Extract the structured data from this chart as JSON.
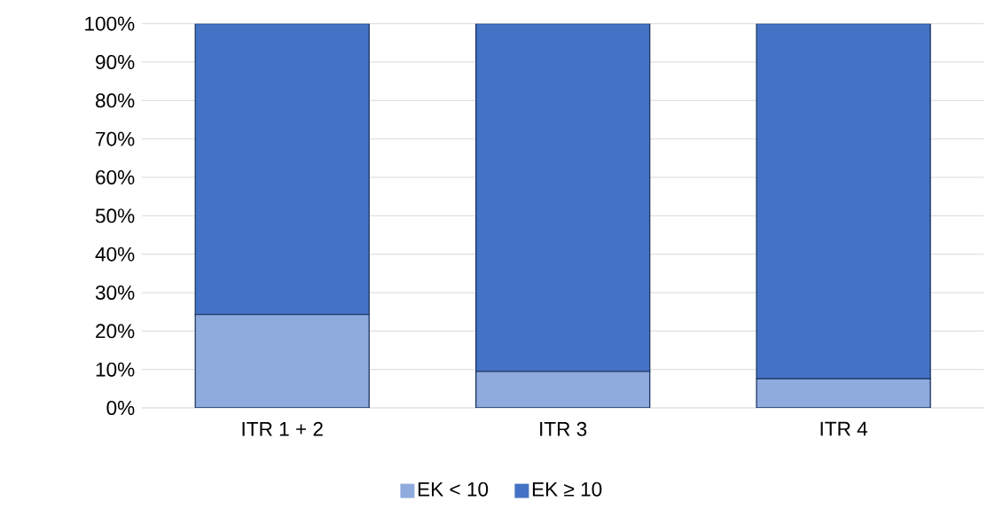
{
  "chart_data": {
    "type": "bar",
    "stacked": true,
    "categories": [
      "ITR 1 + 2",
      "ITR 3",
      "ITR 4"
    ],
    "series": [
      {
        "name": "EK < 10",
        "color": "#8faadc",
        "values": [
          24.3,
          9.5,
          7.6
        ]
      },
      {
        "name": "EK ≥ 10",
        "color": "#4472c4",
        "values": [
          75.7,
          90.5,
          92.4
        ]
      }
    ],
    "ylim": [
      0,
      100
    ],
    "yticks": [
      {
        "value": 0,
        "label": "0%"
      },
      {
        "value": 10,
        "label": "10%"
      },
      {
        "value": 20,
        "label": "20%"
      },
      {
        "value": 30,
        "label": "30%"
      },
      {
        "value": 40,
        "label": "40%"
      },
      {
        "value": 50,
        "label": "50%"
      },
      {
        "value": 60,
        "label": "60%"
      },
      {
        "value": 70,
        "label": "70%"
      },
      {
        "value": 80,
        "label": "80%"
      },
      {
        "value": 90,
        "label": "90%"
      },
      {
        "value": 100,
        "label": "100%"
      }
    ],
    "grid": "y",
    "legend": "bottom"
  }
}
